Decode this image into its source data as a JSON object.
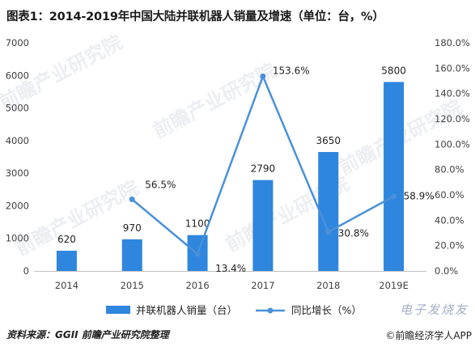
{
  "title": "图表1：2014-2019年中国大陆并联机器人销量及增速（单位：台，%）",
  "source": "资料来源：GGII 前瞻产业研究院整理",
  "credit": "©前瞻经济学人APP",
  "watermarks": {
    "brand": "前瞻产业研究院",
    "corner": "电子发烧友"
  },
  "colors": {
    "bar": "#2e86de",
    "line": "#4a90d9",
    "axis": "#bfbfbf",
    "text": "#404040"
  },
  "chart_data": {
    "type": "bar",
    "categories": [
      "2014",
      "2015",
      "2016",
      "2017",
      "2018",
      "2019E"
    ],
    "series": [
      {
        "name": "并联机器人销量（台）",
        "type": "bar",
        "axis": "left",
        "values": [
          620,
          970,
          1100,
          2790,
          3650,
          5800
        ],
        "labels": [
          "620",
          "970",
          "1100",
          "2790",
          "3650",
          "5800"
        ]
      },
      {
        "name": "同比增长（%）",
        "type": "line",
        "axis": "right",
        "values": [
          null,
          56.5,
          13.4,
          153.6,
          30.8,
          58.9
        ],
        "labels": [
          "",
          "56.5%",
          "13.4%",
          "153.6%",
          "30.8%",
          "58.9%"
        ]
      }
    ],
    "yleft": {
      "min": 0,
      "max": 7000,
      "ticks": [
        "0",
        "1000",
        "2000",
        "3000",
        "4000",
        "5000",
        "6000",
        "7000"
      ]
    },
    "yright": {
      "min": 0,
      "max": 180,
      "ticks": [
        "0.0%",
        "20.0%",
        "40.0%",
        "60.0%",
        "80.0%",
        "100.0%",
        "120.0%",
        "140.0%",
        "160.0%",
        "180.0%"
      ]
    },
    "grid": false,
    "legend": "bottom"
  }
}
